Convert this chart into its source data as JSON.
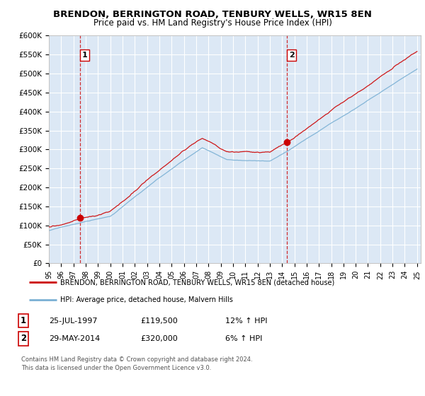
{
  "title": "BRENDON, BERRINGTON ROAD, TENBURY WELLS, WR15 8EN",
  "subtitle": "Price paid vs. HM Land Registry's House Price Index (HPI)",
  "ylabel_ticks": [
    "£0",
    "£50K",
    "£100K",
    "£150K",
    "£200K",
    "£250K",
    "£300K",
    "£350K",
    "£400K",
    "£450K",
    "£500K",
    "£550K",
    "£600K"
  ],
  "ylim": [
    0,
    600000
  ],
  "ytick_vals": [
    0,
    50000,
    100000,
    150000,
    200000,
    250000,
    300000,
    350000,
    400000,
    450000,
    500000,
    550000,
    600000
  ],
  "x_start_year": 1995,
  "x_end_year": 2025,
  "sale1_year": 1997.56,
  "sale1_price": 119500,
  "sale1_label": "1",
  "sale2_year": 2014.41,
  "sale2_price": 320000,
  "sale2_label": "2",
  "red_line_color": "#cc0000",
  "blue_line_color": "#7ab0d4",
  "background_color": "#dce8f5",
  "legend_line1": "BRENDON, BERRINGTON ROAD, TENBURY WELLS, WR15 8EN (detached house)",
  "legend_line2": "HPI: Average price, detached house, Malvern Hills",
  "table_row1": [
    "1",
    "25-JUL-1997",
    "£119,500",
    "12% ↑ HPI"
  ],
  "table_row2": [
    "2",
    "29-MAY-2014",
    "£320,000",
    "6% ↑ HPI"
  ],
  "footnote": "Contains HM Land Registry data © Crown copyright and database right 2024.\nThis data is licensed under the Open Government Licence v3.0."
}
